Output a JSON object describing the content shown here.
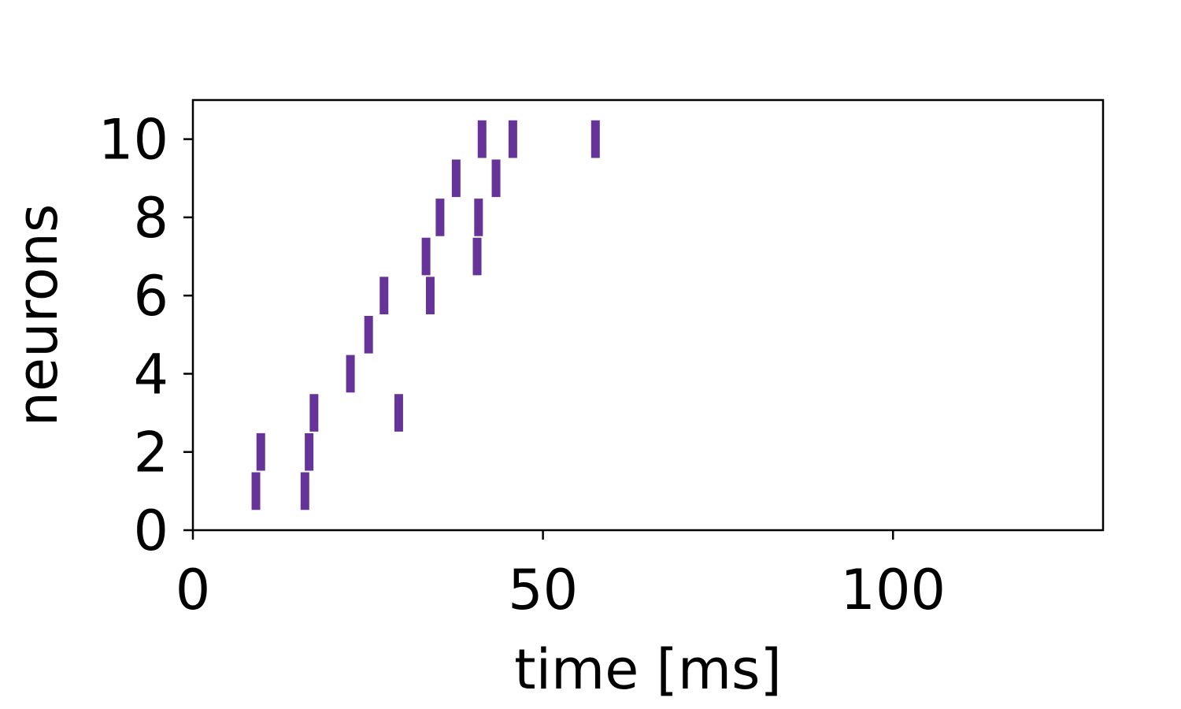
{
  "chart_data": {
    "type": "scatter",
    "subtype": "raster",
    "title": "",
    "xlabel": "time [ms]",
    "ylabel": "neurons",
    "xlim": [
      0,
      130
    ],
    "ylim": [
      0,
      11
    ],
    "xticks": [
      0,
      50,
      100
    ],
    "yticks": [
      0,
      2,
      4,
      6,
      8,
      10
    ],
    "grid": false,
    "marker": "vertical-line",
    "color": "#663399",
    "series": [
      {
        "values": [
          {
            "x": 9.0,
            "y": 1
          },
          {
            "x": 16.0,
            "y": 1
          },
          {
            "x": 9.7,
            "y": 2
          },
          {
            "x": 16.6,
            "y": 2
          },
          {
            "x": 17.3,
            "y": 3
          },
          {
            "x": 29.4,
            "y": 3
          },
          {
            "x": 22.5,
            "y": 4
          },
          {
            "x": 25.1,
            "y": 5
          },
          {
            "x": 27.3,
            "y": 6
          },
          {
            "x": 33.9,
            "y": 6
          },
          {
            "x": 33.3,
            "y": 7
          },
          {
            "x": 40.6,
            "y": 7
          },
          {
            "x": 35.3,
            "y": 8
          },
          {
            "x": 40.8,
            "y": 8
          },
          {
            "x": 37.6,
            "y": 9
          },
          {
            "x": 43.3,
            "y": 9
          },
          {
            "x": 41.3,
            "y": 10
          },
          {
            "x": 45.7,
            "y": 10
          },
          {
            "x": 57.5,
            "y": 10
          }
        ]
      }
    ]
  }
}
